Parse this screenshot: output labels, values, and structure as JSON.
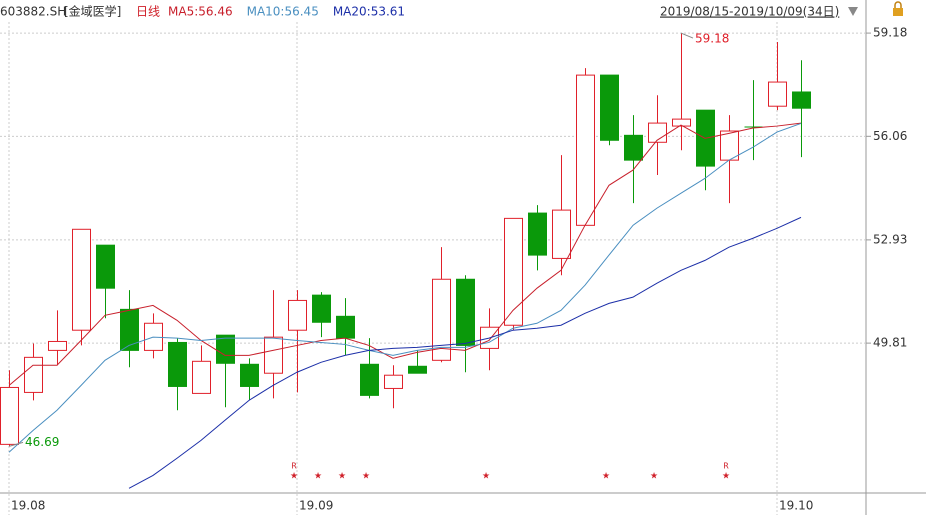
{
  "chart_data": {
    "type": "candlestick",
    "header": {
      "ticker": "603882.SH",
      "name": "[金域医学]",
      "period": "日线",
      "date_range": "2019/08/15-2019/10/09(34日)"
    },
    "categories": [
      "19.08",
      null,
      null,
      null,
      null,
      null,
      null,
      null,
      null,
      null,
      null,
      null,
      "19.09",
      null,
      null,
      null,
      null,
      null,
      null,
      null,
      null,
      null,
      null,
      null,
      null,
      null,
      null,
      null,
      null,
      null,
      null,
      null,
      "19.10",
      null
    ],
    "open": [
      46.75,
      48.32,
      49.59,
      50.2,
      52.77,
      50.83,
      49.59,
      49.83,
      48.29,
      50.05,
      49.17,
      48.9,
      50.2,
      51.26,
      50.62,
      49.17,
      48.44,
      49.11,
      49.29,
      51.74,
      49.65,
      50.35,
      53.74,
      52.37,
      53.37,
      57.91,
      56.09,
      55.88,
      56.37,
      56.85,
      55.34,
      56.34,
      56.97,
      57.4
    ],
    "high": [
      48.99,
      49.8,
      50.8,
      53.25,
      52.77,
      51.41,
      50.71,
      49.96,
      49.74,
      50.05,
      49.35,
      51.41,
      51.41,
      51.35,
      51.17,
      49.96,
      49.14,
      49.59,
      52.71,
      51.86,
      50.86,
      53.58,
      53.98,
      55.49,
      58.12,
      57.91,
      56.7,
      57.3,
      59.18,
      56.85,
      56.7,
      57.76,
      58.91,
      58.36
    ],
    "low": [
      46.69,
      48.08,
      49.14,
      49.74,
      50.56,
      49.08,
      49.35,
      47.78,
      48.29,
      47.87,
      48.08,
      48.14,
      48.32,
      49.99,
      49.44,
      48.14,
      47.84,
      48.9,
      49.23,
      48.93,
      48.99,
      50.2,
      52.01,
      51.86,
      53.37,
      55.79,
      54.04,
      54.89,
      55.64,
      54.43,
      54.04,
      55.34,
      56.85,
      55.43
    ],
    "close": [
      48.47,
      49.38,
      49.86,
      53.25,
      51.47,
      49.59,
      50.41,
      48.5,
      49.26,
      49.2,
      48.5,
      49.99,
      51.1,
      50.44,
      49.96,
      48.23,
      48.84,
      48.9,
      51.74,
      49.74,
      50.29,
      53.58,
      52.47,
      53.83,
      57.91,
      55.94,
      55.34,
      56.46,
      56.58,
      55.16,
      56.22,
      56.34,
      57.7,
      56.91
    ],
    "up_color": "#e0202a",
    "down_color": "#0a990a",
    "series": [
      {
        "name": "MA5:56.46",
        "color": "#c8202c",
        "values": [
          48.53,
          49.14,
          49.14,
          49.89,
          50.65,
          50.8,
          50.95,
          50.5,
          49.89,
          49.44,
          49.44,
          49.59,
          49.74,
          49.89,
          49.96,
          49.74,
          49.35,
          49.53,
          49.65,
          49.59,
          49.89,
          50.8,
          51.47,
          52.01,
          53.37,
          54.58,
          55.04,
          55.94,
          56.4,
          56.0,
          56.15,
          56.31,
          56.37,
          56.46
        ]
      },
      {
        "name": "MA10:56.45",
        "color": "#4a8fc0",
        "values": [
          46.51,
          47.17,
          47.78,
          48.53,
          49.29,
          49.74,
          49.99,
          49.96,
          49.89,
          49.96,
          49.96,
          49.96,
          49.89,
          49.83,
          49.77,
          49.59,
          49.44,
          49.59,
          49.68,
          49.68,
          49.83,
          50.26,
          50.41,
          50.8,
          51.56,
          52.47,
          53.37,
          53.89,
          54.34,
          54.79,
          55.34,
          55.73,
          56.19,
          56.45
        ]
      },
      {
        "name": "MA20:53.61",
        "color": "#1c2fa8",
        "values": [
          null,
          null,
          null,
          null,
          null,
          45.42,
          45.81,
          46.33,
          46.87,
          47.48,
          48.08,
          48.53,
          48.93,
          49.23,
          49.44,
          49.59,
          49.65,
          49.68,
          49.74,
          49.8,
          49.96,
          50.2,
          50.26,
          50.35,
          50.71,
          51.01,
          51.2,
          51.62,
          52.01,
          52.31,
          52.71,
          52.98,
          53.28,
          53.61
        ]
      }
    ],
    "markers": [
      {
        "category": 12,
        "symbol": "★",
        "note": "R"
      },
      {
        "category": 13,
        "symbol": "★"
      },
      {
        "category": 14,
        "symbol": "★"
      },
      {
        "category": 15,
        "symbol": "★"
      },
      {
        "category": 20,
        "symbol": "★"
      },
      {
        "category": 25,
        "symbol": "★"
      },
      {
        "category": 27,
        "symbol": "★"
      },
      {
        "category": 30,
        "symbol": "★",
        "note": "R"
      }
    ],
    "ylim": [
      45.28,
      60.18
    ],
    "yticks": [
      59.18,
      56.06,
      52.93,
      49.81
    ],
    "grid": true
  }
}
